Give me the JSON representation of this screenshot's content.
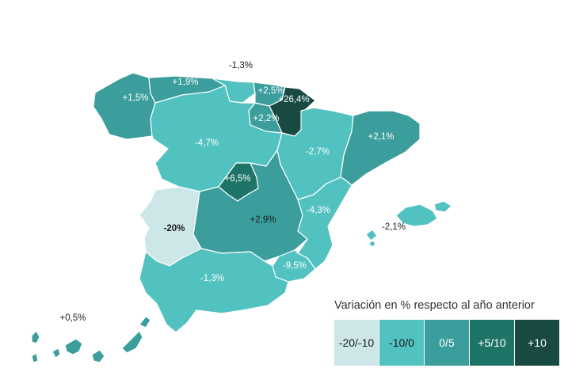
{
  "colors": {
    "c_20_10": "#cde7e8",
    "c_10_0": "#52c2c0",
    "c_0_5": "#3b9e9c",
    "c_5_10": "#1f7468",
    "c_10p": "#184a42"
  },
  "regions": [
    {
      "name": "Galicia",
      "label": "+1,5%",
      "bin": "c_0_5"
    },
    {
      "name": "Asturias",
      "label": "+1,9%",
      "bin": "c_0_5"
    },
    {
      "name": "Cantabria",
      "label": "-1,3%",
      "bin": "c_10_0"
    },
    {
      "name": "País Vasco",
      "label": "+2,5%",
      "bin": "c_0_5"
    },
    {
      "name": "Navarra",
      "label": "+26,4%",
      "bin": "c_10p"
    },
    {
      "name": "La Rioja",
      "label": "+2,2%",
      "bin": "c_0_5"
    },
    {
      "name": "Castilla y León",
      "label": "-4,7%",
      "bin": "c_10_0"
    },
    {
      "name": "Aragón",
      "label": "-2,7%",
      "bin": "c_10_0"
    },
    {
      "name": "Cataluña",
      "label": "+2,1%",
      "bin": "c_0_5"
    },
    {
      "name": "Madrid",
      "label": "+6,5%",
      "bin": "c_5_10"
    },
    {
      "name": "Castilla-La Mancha",
      "label": "+2,9%",
      "bin": "c_0_5"
    },
    {
      "name": "Extremadura",
      "label": "-20%",
      "bin": "c_20_10"
    },
    {
      "name": "Comunidad Valenciana",
      "label": "-4,3%",
      "bin": "c_10_0"
    },
    {
      "name": "Baleares",
      "label": "-2,1%",
      "bin": "c_10_0"
    },
    {
      "name": "Murcia",
      "label": "-9,5%",
      "bin": "c_10_0"
    },
    {
      "name": "Andalucía",
      "label": "-1,3%",
      "bin": "c_10_0"
    },
    {
      "name": "Canarias",
      "label": "+0,5%",
      "bin": "c_0_5"
    }
  ],
  "legend": {
    "title": "Variación en % respecto al año anterior",
    "items": [
      {
        "label": "-20/-10",
        "bin": "c_20_10"
      },
      {
        "label": "-10/0",
        "bin": "c_10_0"
      },
      {
        "label": "0/5",
        "bin": "c_0_5"
      },
      {
        "label": "+5/10",
        "bin": "c_5_10"
      },
      {
        "label": "+10",
        "bin": "c_10p"
      }
    ]
  }
}
